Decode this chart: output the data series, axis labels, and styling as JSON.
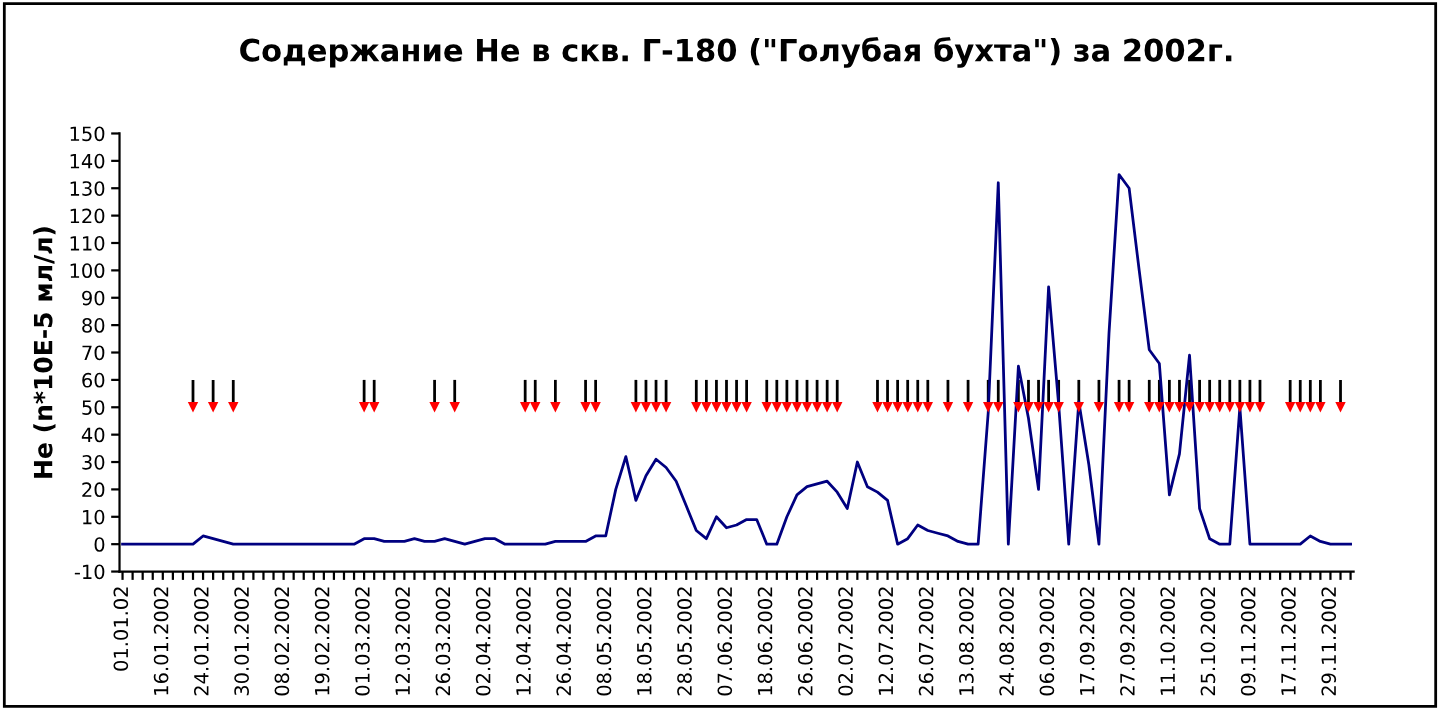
{
  "chart_data": {
    "type": "line",
    "title": "Содержание He в скв. Г-180 (\"Голубая бухта\") за 2002г.",
    "ylabel": "He (n*10E-5 мл/л)",
    "categories": [
      "01.01.02",
      null,
      null,
      null,
      "16.01.2002",
      null,
      null,
      null,
      "24.01.2002",
      null,
      null,
      null,
      "30.01.2002",
      null,
      null,
      null,
      "08.02.2002",
      null,
      null,
      null,
      "19.02.2002",
      null,
      null,
      null,
      "01.03.2002",
      null,
      null,
      null,
      "12.03.2002",
      null,
      null,
      null,
      "26.03.2002",
      null,
      null,
      null,
      "02.04.2002",
      null,
      null,
      null,
      "12.04.2002",
      null,
      null,
      null,
      "26.04.2002",
      null,
      null,
      null,
      "08.05.2002",
      null,
      null,
      null,
      "18.05.2002",
      null,
      null,
      null,
      "28.05.2002",
      null,
      null,
      null,
      "07.06.2002",
      null,
      null,
      null,
      "18.06.2002",
      null,
      null,
      null,
      "26.06.2002",
      null,
      null,
      null,
      "02.07.2002",
      null,
      null,
      null,
      "12.07.2002",
      null,
      null,
      null,
      "26.07.2002",
      null,
      null,
      null,
      "13.08.2002",
      null,
      null,
      null,
      "24.08.2002",
      null,
      null,
      null,
      "06.09.2002",
      null,
      null,
      null,
      "17.09.2002",
      null,
      null,
      null,
      "27.09.2002",
      null,
      null,
      null,
      "11.10.2002",
      null,
      null,
      null,
      "25.10.2002",
      null,
      null,
      null,
      "09.11.2002",
      null,
      null,
      null,
      "17.11.2002",
      null,
      null,
      null,
      "29.11.2002",
      null,
      null
    ],
    "series": [
      {
        "color": "#000080",
        "marker": "none",
        "line_style": "solid",
        "values": [
          0,
          0,
          0,
          0,
          0,
          0,
          0,
          0,
          3,
          2,
          1,
          0,
          0,
          0,
          0,
          0,
          0,
          0,
          0,
          0,
          0,
          0,
          0,
          0,
          2,
          2,
          1,
          1,
          1,
          2,
          1,
          1,
          2,
          1,
          0,
          1,
          2,
          2,
          0,
          0,
          0,
          0,
          0,
          1,
          1,
          1,
          1,
          3,
          3,
          20,
          32,
          16,
          25,
          31,
          28,
          23,
          14,
          5,
          2,
          10,
          6,
          7,
          9,
          9,
          0,
          0,
          10,
          18,
          21,
          22,
          23,
          19,
          13,
          30,
          21,
          19,
          16,
          0,
          2,
          7,
          5,
          4,
          3,
          1,
          0,
          0,
          48,
          132,
          0,
          65,
          46,
          20,
          94,
          51,
          0,
          52,
          29,
          0,
          77,
          135,
          130,
          100,
          71,
          66,
          18,
          33,
          69,
          13,
          2,
          0,
          0,
          50,
          0,
          0,
          0,
          0,
          0,
          0,
          3,
          1,
          0,
          0,
          0
        ]
      },
      {
        "type": "scatter",
        "color": "#ff0000",
        "marker": "triangle",
        "values": [
          null,
          null,
          null,
          null,
          null,
          null,
          null,
          50,
          null,
          50,
          null,
          50,
          null,
          null,
          null,
          null,
          null,
          null,
          null,
          null,
          null,
          null,
          null,
          null,
          50,
          50,
          null,
          null,
          null,
          null,
          null,
          50,
          null,
          50,
          null,
          null,
          null,
          null,
          null,
          null,
          50,
          50,
          null,
          50,
          null,
          null,
          50,
          50,
          null,
          null,
          null,
          50,
          50,
          50,
          50,
          null,
          null,
          50,
          50,
          50,
          50,
          50,
          50,
          null,
          50,
          50,
          50,
          50,
          50,
          50,
          50,
          50,
          null,
          null,
          null,
          50,
          50,
          50,
          50,
          50,
          50,
          null,
          50,
          null,
          50,
          null,
          50,
          50,
          null,
          50,
          50,
          50,
          50,
          50,
          null,
          50,
          null,
          50,
          null,
          50,
          50,
          null,
          50,
          50,
          50,
          50,
          50,
          50,
          50,
          50,
          50,
          50,
          50,
          50,
          null,
          null,
          50,
          50,
          50,
          50,
          null,
          50,
          null
        ],
        "errors": [
          null,
          null,
          null,
          null,
          null,
          null,
          null,
          [
            50,
            60
          ],
          null,
          [
            50,
            60
          ],
          null,
          [
            50,
            60
          ],
          null,
          null,
          null,
          null,
          null,
          null,
          null,
          null,
          null,
          null,
          null,
          null,
          [
            50,
            60
          ],
          [
            50,
            60
          ],
          null,
          null,
          null,
          null,
          null,
          [
            50,
            60
          ],
          null,
          [
            50,
            60
          ],
          null,
          null,
          null,
          null,
          null,
          null,
          [
            50,
            60
          ],
          [
            50,
            60
          ],
          null,
          [
            50,
            60
          ],
          null,
          null,
          [
            50,
            60
          ],
          [
            50,
            60
          ],
          null,
          null,
          null,
          [
            50,
            60
          ],
          [
            50,
            60
          ],
          [
            50,
            60
          ],
          [
            50,
            60
          ],
          null,
          null,
          [
            50,
            60
          ],
          [
            50,
            60
          ],
          [
            50,
            60
          ],
          [
            50,
            60
          ],
          [
            50,
            60
          ],
          [
            50,
            60
          ],
          null,
          [
            50,
            60
          ],
          [
            50,
            60
          ],
          [
            50,
            60
          ],
          [
            50,
            60
          ],
          [
            50,
            60
          ],
          [
            50,
            60
          ],
          [
            50,
            60
          ],
          [
            50,
            60
          ],
          null,
          null,
          null,
          [
            50,
            60
          ],
          [
            50,
            60
          ],
          [
            50,
            60
          ],
          [
            50,
            60
          ],
          [
            50,
            60
          ],
          [
            50,
            60
          ],
          null,
          [
            50,
            60
          ],
          null,
          [
            50,
            60
          ],
          null,
          [
            50,
            60
          ],
          [
            50,
            60
          ],
          null,
          [
            50,
            60
          ],
          [
            50,
            60
          ],
          [
            50,
            60
          ],
          [
            50,
            60
          ],
          [
            50,
            60
          ],
          null,
          [
            50,
            60
          ],
          null,
          [
            50,
            60
          ],
          null,
          [
            50,
            60
          ],
          [
            50,
            60
          ],
          null,
          [
            50,
            60
          ],
          [
            50,
            60
          ],
          [
            50,
            60
          ],
          [
            50,
            60
          ],
          [
            50,
            60
          ],
          [
            50,
            60
          ],
          [
            50,
            60
          ],
          [
            50,
            60
          ],
          [
            50,
            60
          ],
          [
            50,
            60
          ],
          [
            50,
            60
          ],
          [
            50,
            60
          ],
          null,
          null,
          [
            50,
            60
          ],
          [
            50,
            60
          ],
          [
            50,
            60
          ],
          [
            50,
            60
          ],
          null,
          [
            50,
            60
          ],
          null
        ]
      }
    ],
    "ylim": [
      -10,
      150
    ],
    "yticks": [
      -10,
      0,
      10,
      20,
      30,
      40,
      50,
      60,
      70,
      80,
      90,
      100,
      110,
      120,
      130,
      140,
      150
    ],
    "grid": false,
    "legend": false
  }
}
